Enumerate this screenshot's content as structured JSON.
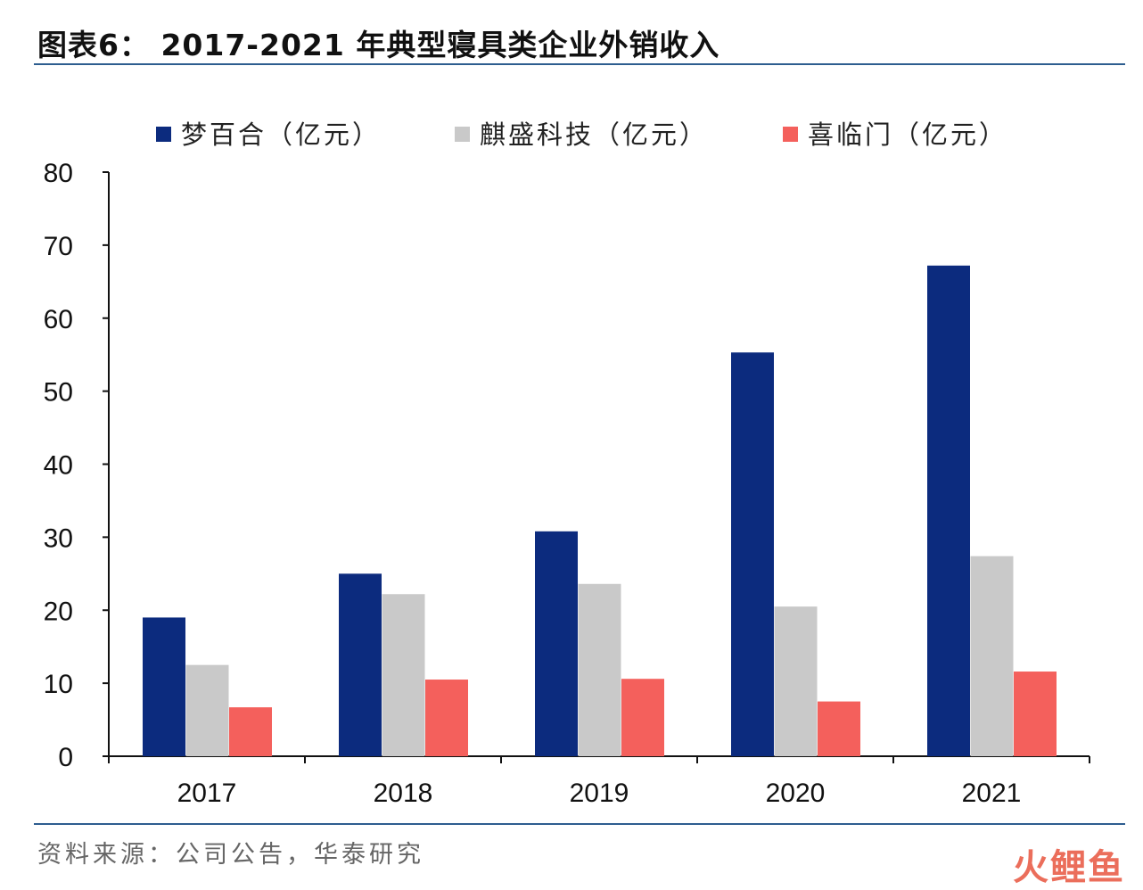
{
  "title": "图表6： 2017-2021 年典型寝具类企业外销收入",
  "source": "资料来源：公司公告，华泰研究",
  "watermark": "火鲤鱼",
  "chart_data": {
    "type": "bar",
    "categories": [
      "2017",
      "2018",
      "2019",
      "2020",
      "2021"
    ],
    "series": [
      {
        "name": "梦百合（亿元）",
        "color": "#0c2b7e",
        "values": [
          19.0,
          25.0,
          30.8,
          55.3,
          67.2
        ]
      },
      {
        "name": "麒盛科技（亿元）",
        "color": "#c9c9c9",
        "values": [
          12.5,
          22.2,
          23.6,
          20.5,
          27.4
        ]
      },
      {
        "name": "喜临门（亿元）",
        "color": "#f4605c",
        "values": [
          6.7,
          10.5,
          10.6,
          7.5,
          11.6
        ]
      }
    ],
    "ylim": [
      0,
      80
    ],
    "yticks": [
      "0",
      "10",
      "20",
      "30",
      "40",
      "50",
      "60",
      "70",
      "80"
    ],
    "grid": false,
    "legend": "top"
  }
}
